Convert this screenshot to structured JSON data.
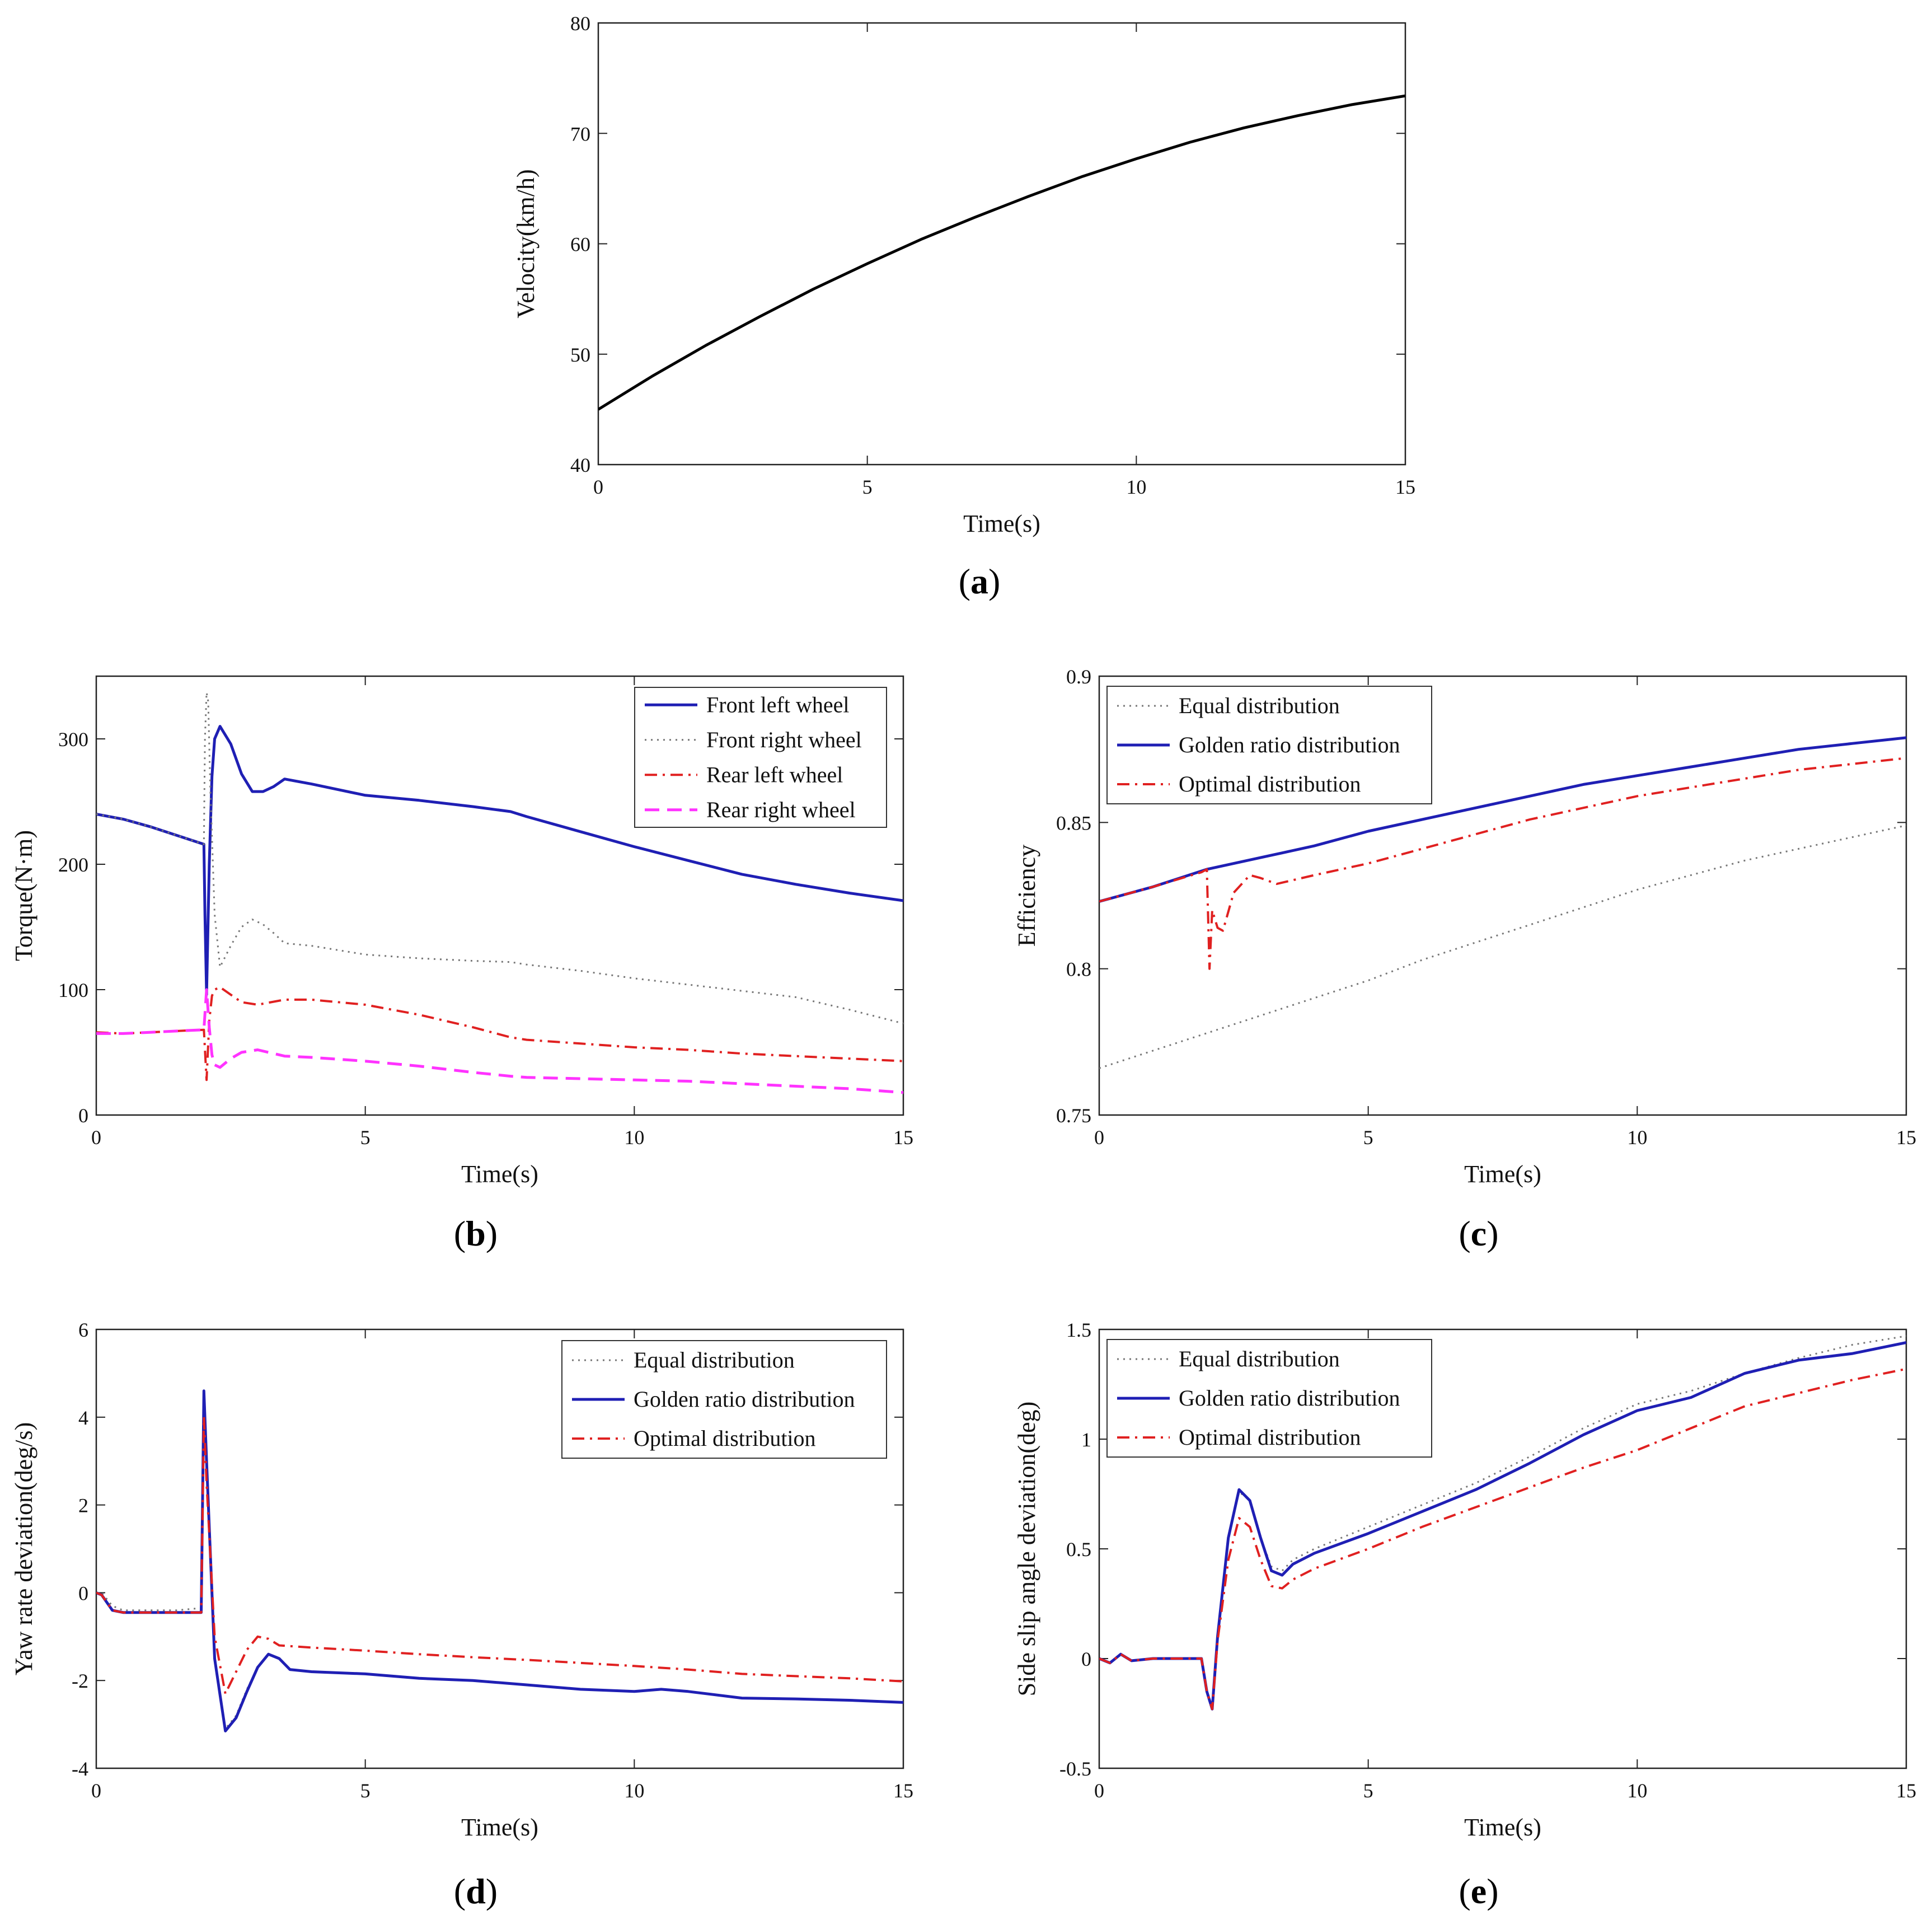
{
  "chart_data": [
    {
      "id": "a",
      "type": "line",
      "caption": "a",
      "xlabel": "Time(s)",
      "ylabel": "Velocity(km/h)",
      "xlim": [
        0,
        15
      ],
      "ylim": [
        40,
        80
      ],
      "xticks": [
        0,
        5,
        10,
        15
      ],
      "yticks": [
        40,
        50,
        60,
        70,
        80
      ],
      "legend": null,
      "series": [
        {
          "color": "#000000",
          "dash": "solid",
          "x": [
            0,
            1,
            2,
            3,
            4,
            5,
            6,
            7,
            8,
            9,
            10,
            11,
            12,
            13,
            14,
            15
          ],
          "y": [
            45.0,
            48.0,
            50.8,
            53.4,
            55.9,
            58.2,
            60.4,
            62.4,
            64.3,
            66.1,
            67.7,
            69.2,
            70.5,
            71.6,
            72.6,
            73.4
          ]
        }
      ]
    },
    {
      "id": "b",
      "type": "line",
      "caption": "b",
      "xlabel": "Time(s)",
      "ylabel": "Torque(N·m)",
      "xlim": [
        0,
        15
      ],
      "ylim": [
        0,
        350
      ],
      "xticks": [
        0,
        5,
        10,
        15
      ],
      "yticks": [
        0,
        100,
        200,
        300
      ],
      "legend": "top-right",
      "series": [
        {
          "name": "Front left wheel",
          "color": "#1f1fb4",
          "dash": "solid",
          "x": [
            0,
            0.5,
            1,
            1.5,
            2,
            2.02,
            2.05,
            2.1,
            2.15,
            2.2,
            2.3,
            2.5,
            2.7,
            2.9,
            3.1,
            3.3,
            3.5,
            4,
            5,
            6,
            7,
            7.7,
            8,
            9,
            10,
            11,
            12,
            13,
            14,
            15
          ],
          "y": [
            240,
            236,
            230,
            223,
            216,
            160,
            96,
            200,
            270,
            300,
            310,
            296,
            272,
            258,
            258,
            262,
            268,
            264,
            255,
            251,
            246,
            242,
            238,
            226,
            214,
            203,
            192,
            184,
            177,
            171
          ]
        },
        {
          "name": "Front right wheel",
          "color": "#777777",
          "dash": "dot",
          "x": [
            0,
            0.5,
            1,
            1.5,
            2,
            2.02,
            2.05,
            2.08,
            2.12,
            2.2,
            2.3,
            2.5,
            2.7,
            2.9,
            3.1,
            3.3,
            3.5,
            4,
            5,
            6,
            7,
            7.7,
            8,
            9,
            10,
            11,
            12,
            13,
            14,
            15
          ],
          "y": [
            240,
            236,
            230,
            223,
            216,
            300,
            337,
            330,
            260,
            160,
            118,
            135,
            150,
            156,
            152,
            145,
            137,
            135,
            128,
            125,
            123,
            122,
            120,
            115,
            109,
            104,
            99,
            94,
            84,
            73
          ]
        },
        {
          "name": "Rear left wheel",
          "color": "#e02020",
          "dash": "dashdot",
          "x": [
            0,
            0.5,
            1,
            1.5,
            2,
            2.05,
            2.1,
            2.15,
            2.2,
            2.3,
            2.5,
            2.7,
            3,
            3.5,
            4,
            5,
            6,
            7,
            7.7,
            8,
            9,
            10,
            11,
            12,
            13,
            14,
            15
          ],
          "y": [
            66,
            65,
            66,
            67,
            68,
            28,
            75,
            95,
            100,
            102,
            96,
            90,
            88,
            92,
            92,
            88,
            80,
            70,
            62,
            60,
            57,
            54,
            52,
            49,
            47,
            45,
            43
          ]
        },
        {
          "name": "Rear right wheel",
          "color": "#ff33ff",
          "dash": "dash",
          "x": [
            0,
            0.5,
            1,
            1.5,
            2,
            2.05,
            2.1,
            2.15,
            2.2,
            2.3,
            2.5,
            2.7,
            3,
            3.5,
            4,
            5,
            6,
            7,
            7.7,
            8,
            9,
            10,
            11,
            12,
            13,
            14,
            15
          ],
          "y": [
            65,
            65,
            66,
            67,
            68,
            100,
            70,
            48,
            40,
            38,
            45,
            50,
            52,
            47,
            46,
            43,
            39,
            34,
            31,
            30,
            29,
            28,
            27,
            25,
            23,
            21,
            18
          ]
        }
      ]
    },
    {
      "id": "c",
      "type": "line",
      "caption": "c",
      "xlabel": "Time(s)",
      "ylabel": "Efficiency",
      "xlim": [
        0,
        15
      ],
      "ylim": [
        0.75,
        0.9
      ],
      "xticks": [
        0,
        5,
        10,
        15
      ],
      "yticks": [
        0.75,
        0.8,
        0.85,
        0.9
      ],
      "legend": "top-left",
      "series": [
        {
          "name": "Equal distribution",
          "color": "#777777",
          "dash": "dot",
          "x": [
            0,
            1,
            2,
            3,
            4,
            5,
            6,
            7,
            8,
            9,
            10,
            11,
            12,
            13,
            14,
            15
          ],
          "y": [
            0.766,
            0.772,
            0.778,
            0.784,
            0.79,
            0.796,
            0.803,
            0.809,
            0.815,
            0.821,
            0.827,
            0.832,
            0.837,
            0.841,
            0.845,
            0.849
          ]
        },
        {
          "name": "Golden ratio distribution",
          "color": "#1f1fb4",
          "dash": "solid",
          "x": [
            0,
            1,
            2,
            3,
            4,
            5,
            6,
            7,
            8,
            9,
            10,
            11,
            12,
            13,
            14,
            15
          ],
          "y": [
            0.823,
            0.828,
            0.834,
            0.838,
            0.842,
            0.847,
            0.851,
            0.855,
            0.859,
            0.863,
            0.866,
            0.869,
            0.872,
            0.875,
            0.877,
            0.879
          ]
        },
        {
          "name": "Optimal distribution",
          "color": "#e02020",
          "dash": "dashdot",
          "x": [
            0,
            1,
            1.9,
            2.0,
            2.05,
            2.1,
            2.2,
            2.3,
            2.5,
            2.8,
            3.0,
            3.3,
            4,
            5,
            6,
            7,
            8,
            9,
            10,
            11,
            12,
            13,
            14,
            15
          ],
          "y": [
            0.823,
            0.828,
            0.833,
            0.834,
            0.8,
            0.82,
            0.814,
            0.813,
            0.826,
            0.832,
            0.831,
            0.829,
            0.832,
            0.836,
            0.841,
            0.846,
            0.851,
            0.855,
            0.859,
            0.862,
            0.865,
            0.868,
            0.87,
            0.872
          ]
        }
      ]
    },
    {
      "id": "d",
      "type": "line",
      "caption": "d",
      "xlabel": "Time(s)",
      "ylabel": "Yaw rate deviation(deg/s)",
      "xlim": [
        0,
        15
      ],
      "ylim": [
        -4,
        6
      ],
      "xticks": [
        0,
        5,
        10,
        15
      ],
      "yticks": [
        -4,
        -2,
        0,
        2,
        4,
        6
      ],
      "legend": "top-right",
      "series": [
        {
          "name": "Equal distribution",
          "color": "#777777",
          "dash": "dot",
          "x": [
            0,
            0.1,
            0.3,
            0.5,
            1,
            1.5,
            1.95,
            2.0,
            2.05,
            2.2,
            2.4,
            2.6,
            2.8,
            3.0,
            3.2,
            3.4,
            3.6,
            4,
            5,
            6,
            7,
            8,
            9,
            10,
            10.5,
            11,
            12,
            13,
            14,
            15
          ],
          "y": [
            0,
            0.0,
            -0.3,
            -0.4,
            -0.4,
            -0.4,
            -0.35,
            4.6,
            3.0,
            -1.5,
            -3.1,
            -2.8,
            -2.2,
            -1.7,
            -1.4,
            -1.5,
            -1.75,
            -1.8,
            -1.85,
            -1.95,
            -2.0,
            -2.1,
            -2.2,
            -2.25,
            -2.2,
            -2.25,
            -2.4,
            -2.42,
            -2.45,
            -2.5
          ]
        },
        {
          "name": "Golden ratio distribution",
          "color": "#1f1fb4",
          "dash": "solid",
          "x": [
            0,
            0.1,
            0.3,
            0.5,
            1,
            1.5,
            1.95,
            2.0,
            2.05,
            2.2,
            2.4,
            2.6,
            2.8,
            3.0,
            3.2,
            3.4,
            3.6,
            4,
            5,
            6,
            7,
            8,
            9,
            10,
            10.5,
            11,
            12,
            13,
            14,
            15
          ],
          "y": [
            0,
            -0.05,
            -0.4,
            -0.45,
            -0.45,
            -0.45,
            -0.45,
            4.6,
            3.0,
            -1.5,
            -3.15,
            -2.85,
            -2.25,
            -1.7,
            -1.4,
            -1.5,
            -1.75,
            -1.8,
            -1.85,
            -1.95,
            -2.0,
            -2.1,
            -2.2,
            -2.25,
            -2.2,
            -2.25,
            -2.4,
            -2.42,
            -2.45,
            -2.5
          ]
        },
        {
          "name": "Optimal distribution",
          "color": "#e02020",
          "dash": "dashdot",
          "x": [
            0,
            0.1,
            0.3,
            0.5,
            1,
            1.5,
            1.95,
            2.0,
            2.05,
            2.2,
            2.4,
            2.6,
            2.8,
            3.0,
            3.2,
            3.4,
            4,
            5,
            6,
            7,
            8,
            9,
            10,
            11,
            12,
            13,
            14,
            15
          ],
          "y": [
            0,
            -0.05,
            -0.4,
            -0.45,
            -0.45,
            -0.45,
            -0.45,
            4.0,
            2.5,
            -1.0,
            -2.3,
            -1.8,
            -1.3,
            -1.0,
            -1.05,
            -1.2,
            -1.25,
            -1.32,
            -1.4,
            -1.47,
            -1.53,
            -1.6,
            -1.67,
            -1.75,
            -1.85,
            -1.9,
            -1.95,
            -2.02
          ]
        }
      ]
    },
    {
      "id": "e",
      "type": "line",
      "caption": "e",
      "xlabel": "Time(s)",
      "ylabel": "Side slip angle deviation(deg)",
      "xlim": [
        0,
        15
      ],
      "ylim": [
        -0.5,
        1.5
      ],
      "xticks": [
        0,
        5,
        10,
        15
      ],
      "yticks": [
        -0.5,
        0,
        0.5,
        1,
        1.5
      ],
      "legend": "top-left",
      "series": [
        {
          "name": "Equal distribution",
          "color": "#777777",
          "dash": "dot",
          "x": [
            0,
            0.2,
            0.4,
            0.6,
            1,
            1.5,
            1.9,
            2.0,
            2.1,
            2.2,
            2.4,
            2.6,
            2.8,
            3.0,
            3.2,
            3.4,
            3.6,
            4,
            5,
            6,
            7,
            8,
            9,
            10,
            11,
            12,
            13,
            14,
            15
          ],
          "y": [
            0,
            -0.02,
            0.02,
            -0.01,
            0,
            0.0,
            0.0,
            -0.15,
            -0.23,
            0.1,
            0.55,
            0.76,
            0.72,
            0.55,
            0.42,
            0.4,
            0.45,
            0.5,
            0.6,
            0.7,
            0.8,
            0.92,
            1.05,
            1.16,
            1.22,
            1.3,
            1.37,
            1.43,
            1.47
          ]
        },
        {
          "name": "Golden ratio distribution",
          "color": "#1f1fb4",
          "dash": "solid",
          "x": [
            0,
            0.2,
            0.4,
            0.6,
            1,
            1.5,
            1.9,
            2.0,
            2.1,
            2.2,
            2.4,
            2.6,
            2.8,
            3.0,
            3.2,
            3.4,
            3.6,
            4,
            5,
            6,
            7,
            8,
            9,
            10,
            11,
            12,
            13,
            14,
            15
          ],
          "y": [
            0,
            -0.02,
            0.02,
            -0.01,
            0,
            0.0,
            0.0,
            -0.15,
            -0.23,
            0.1,
            0.55,
            0.77,
            0.72,
            0.55,
            0.4,
            0.38,
            0.43,
            0.48,
            0.57,
            0.67,
            0.77,
            0.89,
            1.02,
            1.13,
            1.19,
            1.3,
            1.36,
            1.39,
            1.44
          ]
        },
        {
          "name": "Optimal distribution",
          "color": "#e02020",
          "dash": "dashdot",
          "x": [
            0,
            0.2,
            0.4,
            0.6,
            1,
            1.5,
            1.9,
            2.0,
            2.1,
            2.2,
            2.4,
            2.6,
            2.8,
            3.0,
            3.2,
            3.4,
            3.6,
            4,
            5,
            6,
            7,
            8,
            9,
            10,
            11,
            12,
            13,
            14,
            15
          ],
          "y": [
            0,
            -0.02,
            0.02,
            -0.01,
            0,
            0.0,
            0.0,
            -0.15,
            -0.23,
            0.08,
            0.45,
            0.64,
            0.6,
            0.45,
            0.33,
            0.32,
            0.36,
            0.41,
            0.5,
            0.6,
            0.69,
            0.78,
            0.87,
            0.95,
            1.05,
            1.15,
            1.21,
            1.27,
            1.32
          ]
        }
      ]
    }
  ]
}
